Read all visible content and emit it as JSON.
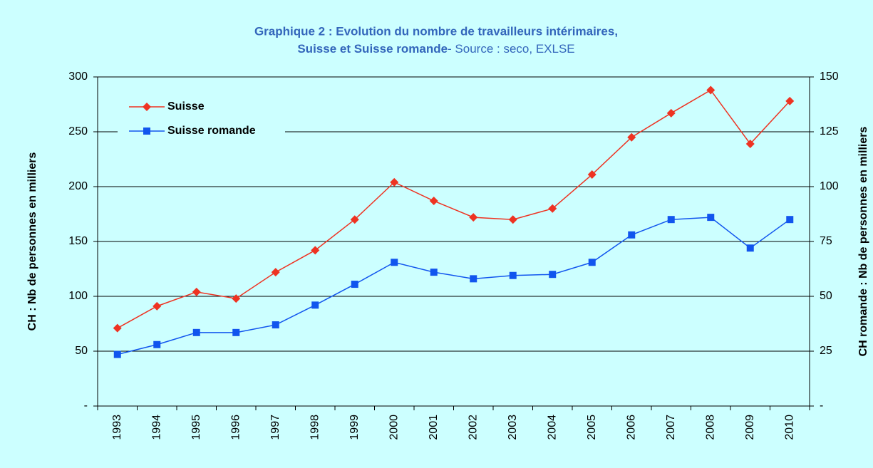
{
  "chart_data": {
    "type": "line",
    "title": "Graphique 2 : Evolution du nombre de travailleurs intérimaires,",
    "title_line2": "Suisse et Suisse romande",
    "source": "- Source : seco, EXLSE",
    "y_label": "CH : Nb de personnes en milliers",
    "y2_label": "CH romande : Nb de personnes en milliers",
    "categories": [
      "1993",
      "1994",
      "1995",
      "1996",
      "1997",
      "1998",
      "1999",
      "2000",
      "2001",
      "2002",
      "2003",
      "2004",
      "2005",
      "2006",
      "2007",
      "2008",
      "2009",
      "2010"
    ],
    "series": [
      {
        "name": "Suisse",
        "color": "#ee3322",
        "marker": "diamond",
        "values": [
          71,
          91,
          104,
          98,
          122,
          142,
          170,
          204,
          187,
          172,
          170,
          180,
          211,
          245,
          267,
          288,
          239,
          278
        ]
      },
      {
        "name": "Suisse romande",
        "color": "#1155ee",
        "marker": "square",
        "axis": "y2",
        "values": [
          23.5,
          28,
          33.5,
          33.5,
          37,
          46,
          55.5,
          65.5,
          61,
          58,
          59.5,
          60,
          65.5,
          78,
          85,
          86,
          72,
          85
        ]
      }
    ],
    "ylim": [
      0,
      300
    ],
    "yticks": [
      {
        "value": 0,
        "label": "-"
      },
      50,
      100,
      150,
      200,
      250,
      300
    ],
    "y2lim": [
      0,
      150
    ],
    "y2ticks": [
      {
        "value": 0,
        "label": "-"
      },
      25,
      50,
      75,
      100,
      125,
      150
    ],
    "grid": true,
    "legend": "upper left"
  }
}
